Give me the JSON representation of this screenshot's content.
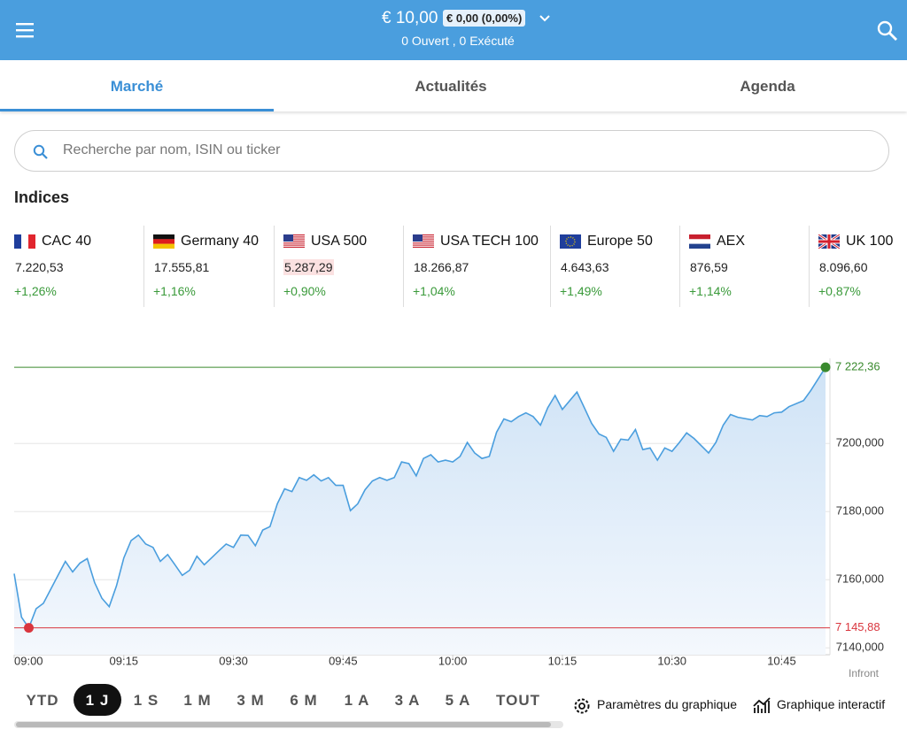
{
  "header": {
    "balance": "€ 10,00",
    "change": "€ 0,00 (0,00%)",
    "status": "0 Ouvert , 0 Exécuté"
  },
  "tabs": [
    "Marché",
    "Actualités",
    "Agenda"
  ],
  "search": {
    "placeholder": "Recherche par nom, ISIN ou ticker"
  },
  "indices": {
    "title": "Indices",
    "items": [
      {
        "name": "CAC 40",
        "value": "7.220,53",
        "change": "+1,26%"
      },
      {
        "name": "Germany 40",
        "value": "17.555,81",
        "change": "+1,16%"
      },
      {
        "name": "USA 500",
        "value": "5.287,29",
        "change": "+0,90%"
      },
      {
        "name": "USA TECH 100",
        "value": "18.266,87",
        "change": "+1,04%"
      },
      {
        "name": "Europe 50",
        "value": "4.643,63",
        "change": "+1,49%"
      },
      {
        "name": "AEX",
        "value": "876,59",
        "change": "+1,14%"
      },
      {
        "name": "UK 100",
        "value": "8.096,60",
        "change": "+0,87%"
      }
    ]
  },
  "chart_data": {
    "type": "area",
    "color": "#4a9ede",
    "source": "Infront",
    "x": [
      "09:00",
      "09:01",
      "09:02",
      "09:03",
      "09:04",
      "09:06",
      "09:07",
      "09:08",
      "09:09",
      "09:10",
      "09:11",
      "09:12",
      "09:13",
      "09:14",
      "09:15",
      "09:16",
      "09:17",
      "09:18",
      "09:19",
      "09:20",
      "09:21",
      "09:22",
      "09:23",
      "09:24",
      "09:25",
      "09:26",
      "09:27",
      "09:28",
      "09:29",
      "09:30",
      "09:31",
      "09:32",
      "09:33",
      "09:34",
      "09:35",
      "09:36",
      "09:37",
      "09:38",
      "09:39",
      "09:40",
      "09:41",
      "09:42",
      "09:43",
      "09:44",
      "09:45",
      "09:46",
      "09:47",
      "09:48",
      "09:49",
      "09:50",
      "09:51",
      "09:52",
      "09:53",
      "09:54",
      "09:55",
      "09:56",
      "09:57",
      "09:58",
      "09:59",
      "10:00",
      "10:01",
      "10:02",
      "10:03",
      "10:04",
      "10:05",
      "10:06",
      "10:07",
      "10:08",
      "10:09",
      "10:10",
      "10:11",
      "10:12",
      "10:13",
      "10:14",
      "10:15",
      "10:17",
      "10:18",
      "10:19",
      "10:20",
      "10:21",
      "10:22",
      "10:23",
      "10:24",
      "10:25",
      "10:26",
      "10:27",
      "10:28",
      "10:29",
      "10:30",
      "10:31",
      "10:32",
      "10:33",
      "10:35",
      "10:36",
      "10:37",
      "10:38",
      "10:39",
      "10:41",
      "10:42",
      "10:43",
      "10:44",
      "10:45",
      "10:46",
      "10:48",
      "10:49",
      "10:51"
    ],
    "values": [
      7161.8,
      7149.0,
      7145.88,
      7151.5,
      7153.1,
      7161.3,
      7165.4,
      7162.3,
      7164.9,
      7166.2,
      7159.2,
      7154.6,
      7152.1,
      7158.2,
      7166.4,
      7171.5,
      7173.1,
      7170.5,
      7169.5,
      7165.4,
      7167.4,
      7164.4,
      7161.3,
      7162.8,
      7166.9,
      7164.4,
      7166.4,
      7168.5,
      7170.5,
      7169.5,
      7173.1,
      7173.0,
      7170.0,
      7174.6,
      7175.6,
      7182.3,
      7186.7,
      7185.9,
      7190.0,
      7189.2,
      7190.8,
      7189.0,
      7190.0,
      7187.7,
      7187.7,
      7180.3,
      7182.3,
      7186.4,
      7189.0,
      7190.0,
      7189.2,
      7190.0,
      7194.6,
      7194.1,
      7190.5,
      7195.6,
      7196.7,
      7194.6,
      7195.1,
      7194.6,
      7196.2,
      7200.3,
      7197.2,
      7195.6,
      7196.2,
      7203.3,
      7207.2,
      7206.4,
      7207.9,
      7209.0,
      7207.9,
      7205.4,
      7210.5,
      7214.1,
      7210.0,
      7215.1,
      7210.5,
      7205.9,
      7202.8,
      7201.8,
      7197.7,
      7201.3,
      7201.0,
      7204.1,
      7198.2,
      7198.7,
      7195.1,
      7198.7,
      7197.7,
      7200.3,
      7203.1,
      7201.5,
      7197.2,
      7200.3,
      7205.4,
      7208.5,
      7207.7,
      7206.9,
      7208.2,
      7207.9,
      7209.0,
      7209.2,
      7210.8,
      7212.6,
      7215.6,
      7222.36
    ],
    "xlim": [
      "09:00",
      "10:51"
    ],
    "xticks": [
      "09:00",
      "09:15",
      "09:30",
      "09:45",
      "10:00",
      "10:15",
      "10:30",
      "10:45"
    ],
    "ylim": [
      7138,
      7225
    ],
    "yticks": [
      {
        "value": 7200,
        "label": "7200,000"
      },
      {
        "value": 7180,
        "label": "7180,000"
      },
      {
        "value": 7160,
        "label": "7160,000"
      },
      {
        "value": 7140,
        "label": "7140,000"
      }
    ],
    "grid": true,
    "high": {
      "value": 7222.36,
      "label": "7 222,36",
      "color": "#3a8a2e"
    },
    "low": {
      "value": 7145.88,
      "label": "7 145,88",
      "color": "#d9363e"
    }
  },
  "range_buttons": [
    "YTD",
    "1 J",
    "1 S",
    "1 M",
    "3 M",
    "6 M",
    "1 A",
    "3 A",
    "5 A",
    "TOUT"
  ],
  "chart_actions": [
    "Paramètres du graphique",
    "Graphique interactif"
  ]
}
